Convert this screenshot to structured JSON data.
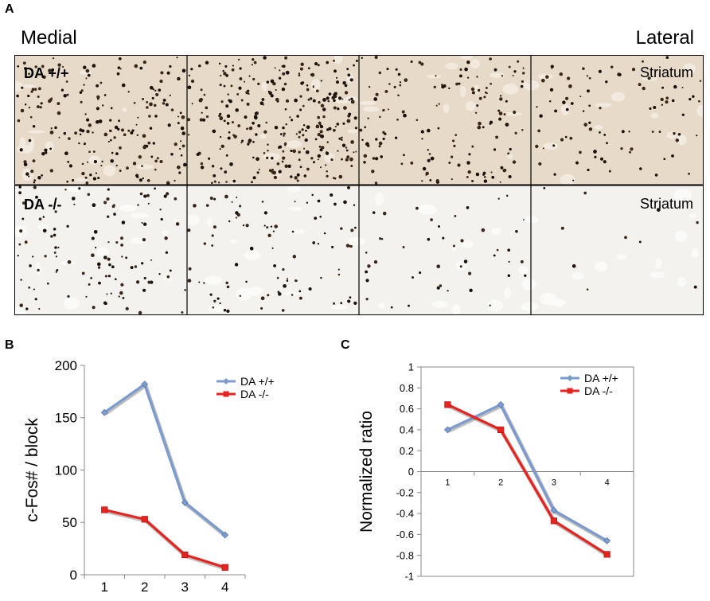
{
  "panel_a": {
    "letter": "A",
    "left_label": "Medial",
    "right_label": "Lateral",
    "rows": [
      {
        "genotype": "DA +/+",
        "region": "Striatum",
        "background": "#e7dac9",
        "blob_color": "#f3ebe1",
        "density": [
          210,
          300,
          150,
          90
        ]
      },
      {
        "genotype": "DA -/-",
        "region": "Striatum",
        "background": "#f3f2ef",
        "blob_color": "#fbfbfa",
        "density": [
          120,
          95,
          45,
          10
        ]
      }
    ]
  },
  "panel_b": {
    "letter": "B"
  },
  "panel_c": {
    "letter": "C"
  },
  "chart_data": [
    {
      "type": "line",
      "panel": "B",
      "title": "",
      "xlabel": "",
      "ylabel": "c-Fos# / block",
      "categories": [
        "1",
        "2",
        "3",
        "4"
      ],
      "ylim": [
        0,
        200
      ],
      "yticks": [
        "0",
        "50",
        "100",
        "150",
        "200"
      ],
      "grid": false,
      "legend": "top-right",
      "series": [
        {
          "name": "DA +/+",
          "values": [
            155,
            182,
            69,
            38
          ],
          "color": "#7b9bcf",
          "marker": "diamond"
        },
        {
          "name": "DA -/-",
          "values": [
            62,
            53,
            19,
            7
          ],
          "color": "#e8231f",
          "marker": "square"
        }
      ]
    },
    {
      "type": "line",
      "panel": "C",
      "title": "",
      "xlabel": "",
      "ylabel": "Normalized ratio",
      "categories": [
        "1",
        "2",
        "3",
        "4"
      ],
      "ylim": [
        -1,
        1
      ],
      "yticks": [
        "1",
        "0.8",
        "0.6",
        "0.4",
        "0.2",
        "0",
        "-0.2",
        "-0.4",
        "-0.6",
        "-0.8",
        "-1"
      ],
      "grid": false,
      "legend": "top-right",
      "series": [
        {
          "name": "DA +/+",
          "values": [
            0.4,
            0.64,
            -0.37,
            -0.66
          ],
          "color": "#7b9bcf",
          "marker": "diamond"
        },
        {
          "name": "DA -/-",
          "values": [
            0.64,
            0.4,
            -0.47,
            -0.79
          ],
          "color": "#e8231f",
          "marker": "square"
        }
      ]
    }
  ]
}
